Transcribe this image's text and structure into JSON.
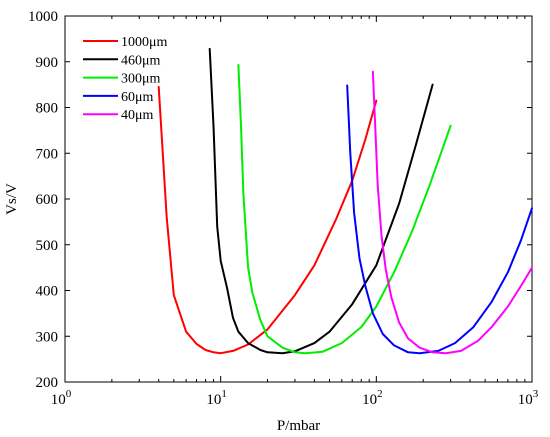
{
  "chart_data": {
    "type": "line",
    "xlabel": "P/mbar",
    "ylabel": "Vs/V",
    "xscale": "log",
    "xlim": [
      1,
      1000
    ],
    "ylim": [
      200,
      1000
    ],
    "grid": false,
    "legend_position": "top-left",
    "x_ticks": [
      {
        "value": 1,
        "base": "10",
        "exp": "0"
      },
      {
        "value": 10,
        "base": "10",
        "exp": "1"
      },
      {
        "value": 100,
        "base": "10",
        "exp": "2"
      },
      {
        "value": 1000,
        "base": "10",
        "exp": "3"
      }
    ],
    "y_ticks": [
      200,
      300,
      400,
      500,
      600,
      700,
      800,
      900,
      1000
    ],
    "series": [
      {
        "name": "1000μm",
        "color": "#ff0000",
        "x": [
          4.0,
          4.5,
          5.0,
          6.0,
          7.0,
          8.0,
          9.0,
          10.0,
          12.0,
          15.0,
          20.0,
          30.0,
          40.0,
          55.0,
          70.0,
          85.0,
          100.0
        ],
        "y": [
          845,
          560,
          390,
          310,
          283,
          270,
          265,
          263,
          268,
          282,
          315,
          390,
          455,
          555,
          640,
          730,
          815
        ]
      },
      {
        "name": "460μm",
        "color": "#000000",
        "x": [
          8.5,
          9.0,
          9.5,
          10.0,
          11.0,
          12.0,
          13.0,
          15.0,
          18.0,
          20.0,
          25.0,
          30.0,
          40.0,
          50.0,
          70.0,
          100.0,
          140.0,
          180.0,
          230.0
        ],
        "y": [
          928,
          760,
          540,
          465,
          405,
          340,
          310,
          285,
          270,
          265,
          263,
          267,
          285,
          310,
          370,
          455,
          590,
          720,
          850
        ]
      },
      {
        "name": "300μm",
        "color": "#00ee00",
        "x": [
          13.0,
          13.5,
          14.0,
          15.0,
          16.0,
          18.0,
          20.0,
          25.0,
          30.0,
          35.0,
          45.0,
          60.0,
          80.0,
          100.0,
          130.0,
          170.0,
          220.0,
          300.0
        ],
        "y": [
          893,
          760,
          610,
          450,
          395,
          335,
          300,
          275,
          265,
          263,
          266,
          285,
          320,
          365,
          440,
          530,
          630,
          760
        ]
      },
      {
        "name": "60μm",
        "color": "#0000ff",
        "x": [
          65.0,
          68.0,
          72.0,
          78.0,
          85.0,
          95.0,
          110.0,
          130.0,
          160.0,
          190.0,
          250.0,
          320.0,
          420.0,
          550.0,
          700.0,
          850.0,
          1000.0
        ],
        "y": [
          848,
          700,
          570,
          470,
          410,
          350,
          305,
          280,
          265,
          263,
          268,
          285,
          320,
          375,
          440,
          510,
          580
        ]
      },
      {
        "name": "40μm",
        "color": "#ff00ff",
        "x": [
          95.0,
          98.0,
          102.0,
          108.0,
          115.0,
          125.0,
          140.0,
          160.0,
          190.0,
          230.0,
          280.0,
          350.0,
          450.0,
          550.0,
          700.0,
          850.0,
          1000.0
        ],
        "y": [
          878,
          770,
          630,
          520,
          445,
          385,
          330,
          295,
          275,
          265,
          263,
          268,
          290,
          320,
          365,
          410,
          450
        ]
      }
    ]
  }
}
